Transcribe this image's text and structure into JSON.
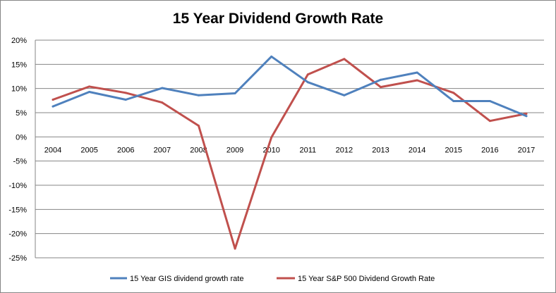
{
  "chart_data": {
    "type": "line",
    "title": "15 Year Dividend Growth Rate",
    "xlabel": "",
    "ylabel": "",
    "categories": [
      "2004",
      "2005",
      "2006",
      "2007",
      "2008",
      "2009",
      "2010",
      "2011",
      "2012",
      "2013",
      "2014",
      "2015",
      "2016",
      "2017"
    ],
    "ylim": [
      -25,
      20
    ],
    "yticks": [
      20,
      15,
      10,
      5,
      0,
      -5,
      -10,
      -15,
      -20,
      -25
    ],
    "ytick_labels": [
      "20%",
      "15%",
      "10%",
      "5%",
      "0%",
      "-5%",
      "-10%",
      "-15%",
      "-20%",
      "-25%"
    ],
    "grid": true,
    "legend_position": "bottom",
    "series": [
      {
        "name": "15 Year GIS dividend growth rate",
        "color": "#4F81BD",
        "values": [
          6.3,
          9.3,
          7.7,
          10.1,
          8.6,
          9.0,
          16.6,
          11.3,
          8.6,
          11.8,
          13.3,
          7.4,
          7.4,
          4.3
        ]
      },
      {
        "name": "15 Year S&P 500 Dividend Growth Rate",
        "color": "#C0504D",
        "values": [
          7.7,
          10.4,
          9.1,
          7.1,
          2.3,
          -23.1,
          -0.1,
          12.9,
          16.1,
          10.3,
          11.7,
          9.1,
          3.3,
          4.8
        ]
      }
    ]
  }
}
